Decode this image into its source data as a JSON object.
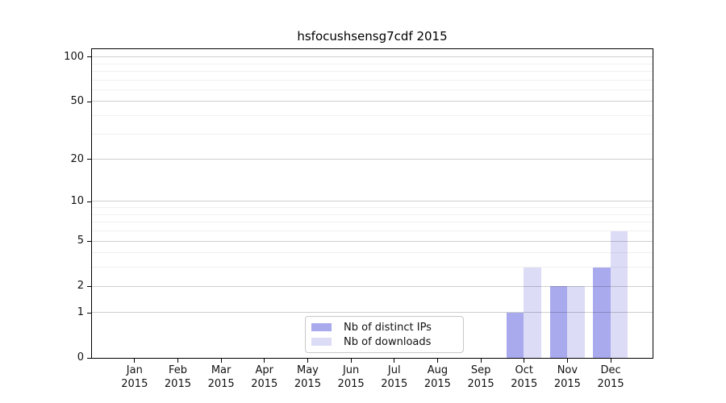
{
  "title": "hsfocushsensg7cdf 2015",
  "legend": {
    "items": [
      {
        "label": "Nb of distinct IPs",
        "color": "#a9a9ee"
      },
      {
        "label": "Nb of downloads",
        "color": "#dcdcf7"
      }
    ],
    "position": "bottom-center"
  },
  "colors": {
    "distinct_ips_bar": "#a9a9ee",
    "downloads_bar": "#dcdcf7",
    "axis": "#000000",
    "major_grid": "#c9c9c9",
    "minor_grid": "#ececec",
    "background": "#ffffff"
  },
  "chart_data": {
    "type": "bar",
    "title": "hsfocushsensg7cdf 2015",
    "categories": [
      "Jan",
      "Feb",
      "Mar",
      "Apr",
      "May",
      "Jun",
      "Jul",
      "Aug",
      "Sep",
      "Oct",
      "Nov",
      "Dec"
    ],
    "year_label": "2015",
    "series": [
      {
        "name": "Nb of distinct IPs",
        "color": "#a9a9ee",
        "values": [
          0,
          0,
          0,
          0,
          0,
          0,
          0,
          0,
          0,
          1,
          2,
          3
        ]
      },
      {
        "name": "Nb of downloads",
        "color": "#dcdcf7",
        "values": [
          0,
          0,
          0,
          0,
          0,
          0,
          0,
          0,
          0,
          3,
          2,
          6
        ]
      }
    ],
    "xlabel": "",
    "ylabel": "",
    "y_scale": "log10(1+y)",
    "y_major_ticks": [
      0,
      1,
      2,
      5,
      10,
      20,
      50,
      100
    ],
    "y_minor_gridlines": [
      3,
      4,
      6,
      7,
      8,
      9,
      30,
      40,
      60,
      70,
      80,
      90
    ],
    "ylim": [
      0,
      114
    ],
    "grid": "on",
    "legend_position": "bottom-center"
  }
}
